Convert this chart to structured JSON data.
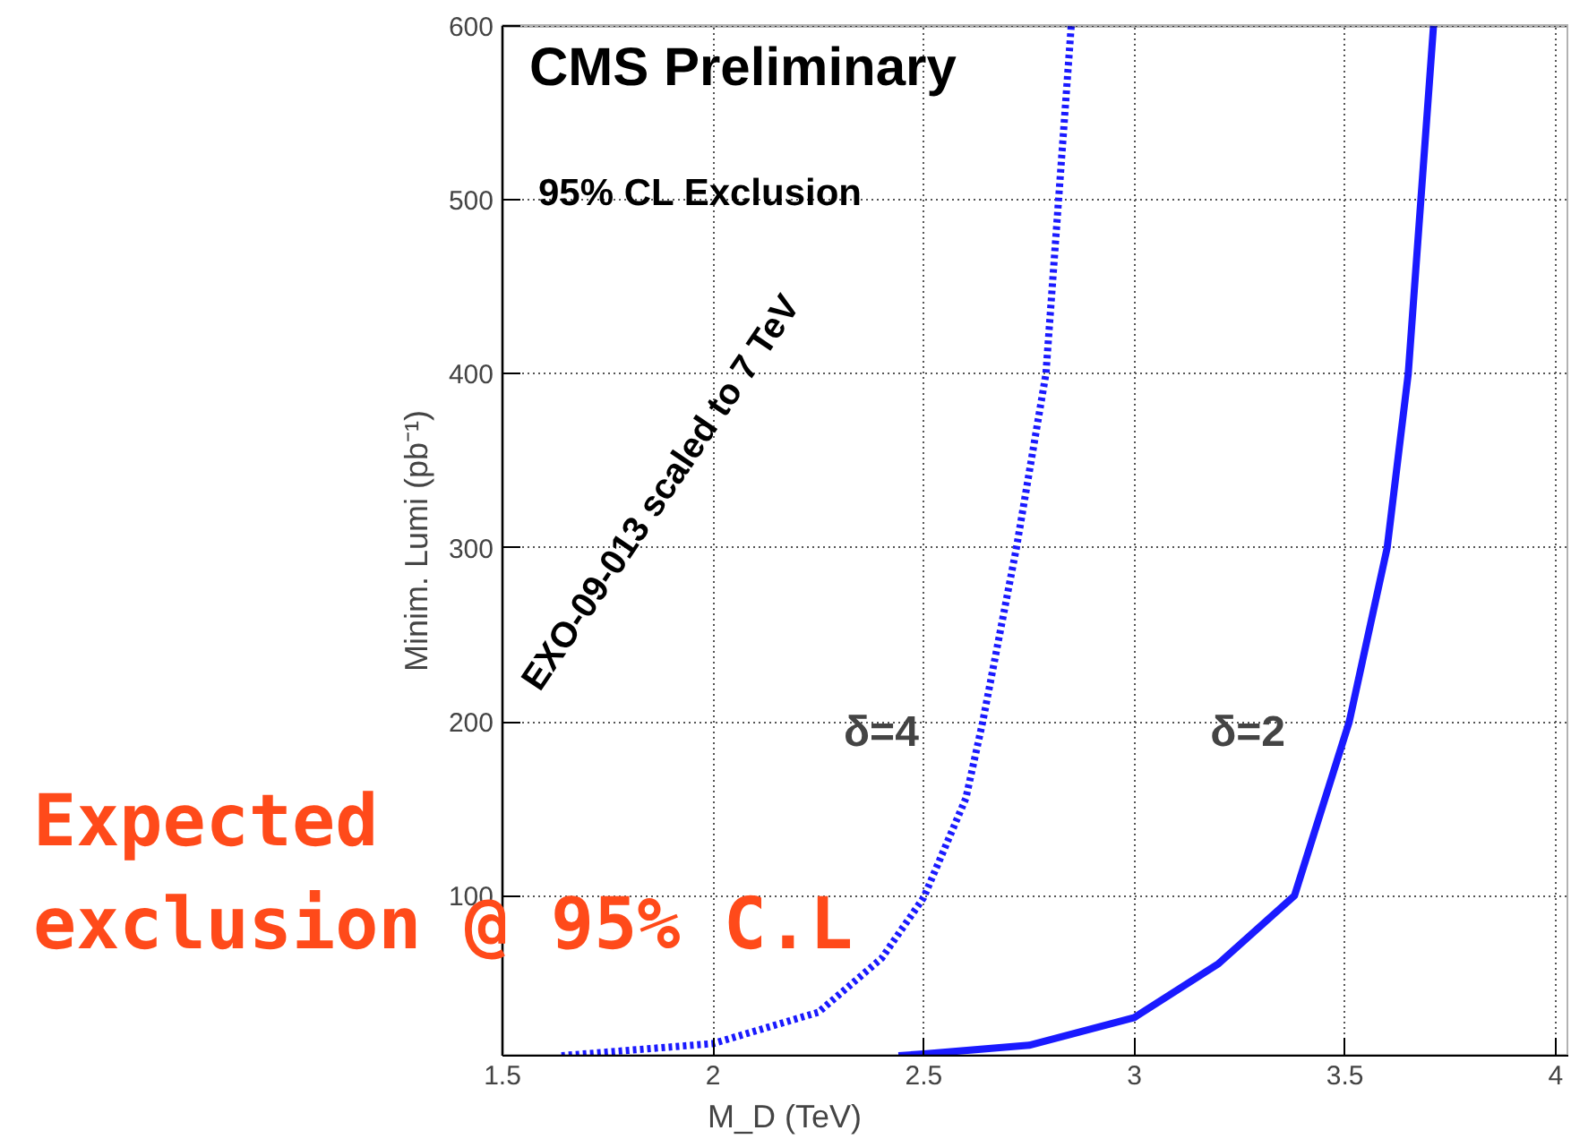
{
  "chart_data": {
    "type": "line",
    "xlabel": "M_D (TeV)",
    "ylabel": "Minim. Lumi (pb⁻¹)",
    "xlim": [
      1.5,
      4.03
    ],
    "ylim": [
      8,
      600
    ],
    "xticks": [
      1.5,
      2,
      2.5,
      3,
      3.5,
      4
    ],
    "yticks": [
      100,
      200,
      300,
      400,
      500,
      600
    ],
    "grid": true,
    "series": [
      {
        "name": "δ=4",
        "color": "#1a1aff",
        "line_style": "dotted",
        "x": [
          1.64,
          2.0,
          2.25,
          2.4,
          2.5,
          2.6,
          2.64,
          2.72,
          2.79,
          2.82,
          2.85
        ],
        "values": [
          8,
          15,
          33,
          64,
          99,
          156,
          200,
          300,
          400,
          500,
          600
        ]
      },
      {
        "name": "δ=2",
        "color": "#1a1aff",
        "line_style": "solid",
        "x": [
          2.44,
          2.5,
          2.75,
          3.0,
          3.2,
          3.38,
          3.51,
          3.6,
          3.65,
          3.68,
          3.71
        ],
        "values": [
          8,
          9,
          14,
          30,
          61,
          100,
          200,
          300,
          400,
          500,
          600
        ]
      }
    ],
    "annotations": [
      "CMS Preliminary",
      "95% CL Exclusion",
      "EXO-09-013 scaled to 7 TeV",
      "Expected exclusion @ 95% C.L"
    ]
  }
}
